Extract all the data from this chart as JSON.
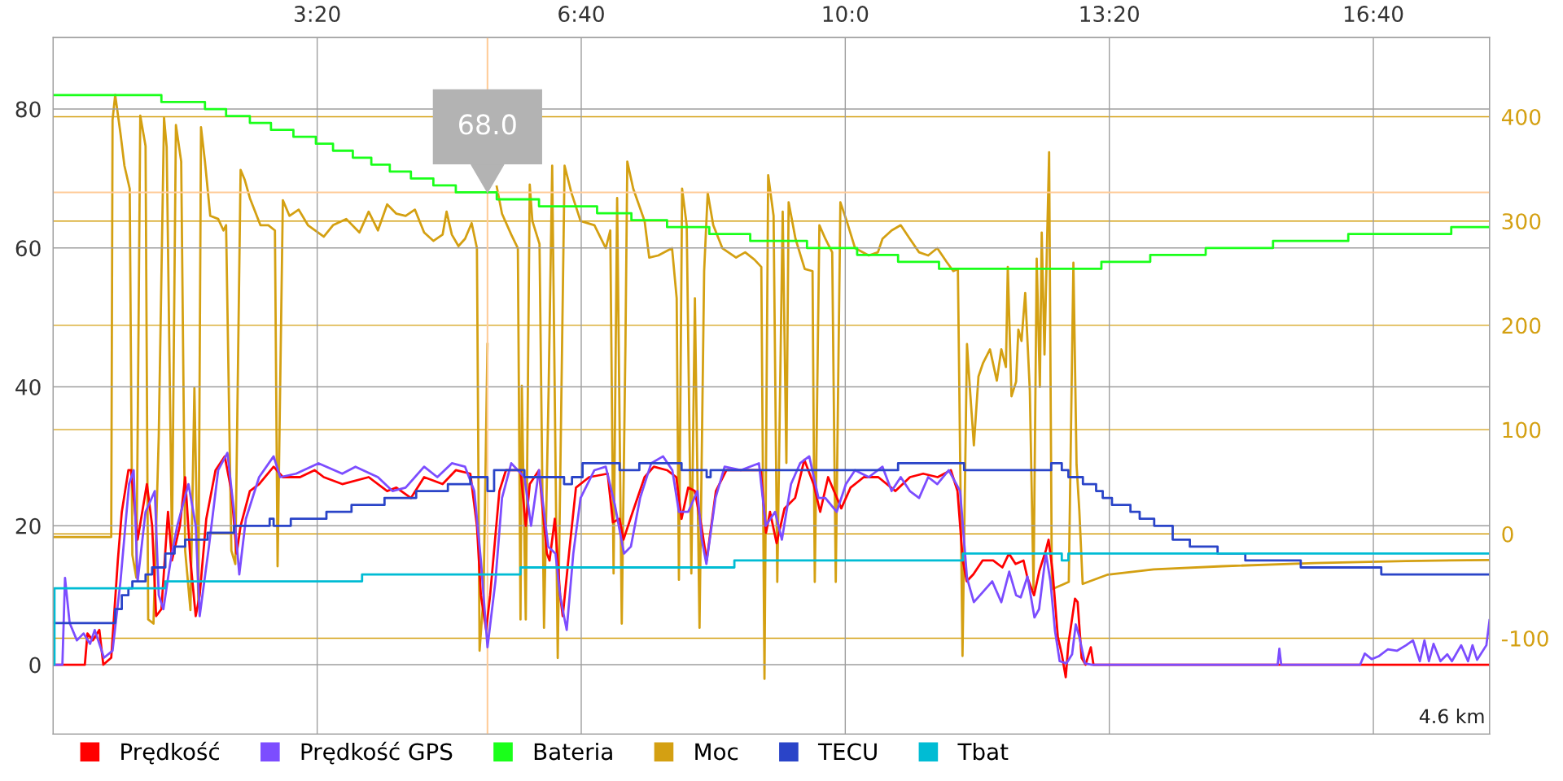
{
  "chart_data": {
    "type": "line",
    "xlim": [
      0,
      1088
    ],
    "xticks": [
      {
        "value": 200,
        "label": "3:20"
      },
      {
        "value": 400,
        "label": "6:40"
      },
      {
        "value": 600,
        "label": "10:0"
      },
      {
        "value": 800,
        "label": "13:20"
      },
      {
        "value": 1000,
        "label": "16:40"
      }
    ],
    "ylim": [
      -10,
      90.3
    ],
    "yticks": [
      0,
      20,
      40,
      60,
      80
    ],
    "y2lim": [
      -192,
      476
    ],
    "y2ticks": [
      -100,
      0,
      100,
      200,
      300,
      400
    ],
    "grid": true,
    "legend": "bottom left",
    "ref_lines": [
      {
        "axis": "x",
        "value": 329,
        "color": "#ffcc99"
      },
      {
        "axis": "y",
        "value": 68,
        "color": "#ffcc99"
      }
    ],
    "annotations": [
      {
        "text": "68.0",
        "x": 329,
        "y": 68
      },
      "4.6 km"
    ],
    "series": [
      {
        "name": "Prędkość",
        "color": "#ff0000",
        "x": [
          0,
          24,
          26,
          30,
          35,
          38,
          44,
          49,
          52,
          57,
          59,
          64,
          71,
          75,
          78,
          82,
          87,
          90,
          96,
          100,
          104,
          108,
          111,
          116,
          123,
          130,
          135,
          139,
          142,
          149,
          156,
          167,
          174,
          187,
          198,
          205,
          219,
          239,
          253,
          260,
          271,
          281,
          295,
          305,
          316,
          321,
          324,
          328,
          331,
          338,
          343,
          354,
          358,
          361,
          368,
          374,
          376,
          380,
          384,
          386,
          391,
          396,
          406,
          420,
          424,
          429,
          432,
          439,
          448,
          455,
          465,
          472,
          476,
          481,
          486,
          491,
          495,
          502,
          510,
          528,
          536,
          540,
          543,
          548,
          554,
          562,
          569,
          576,
          581,
          587,
          597,
          604,
          614,
          625,
          638,
          649,
          659,
          670,
          680,
          685,
          689,
          692,
          697,
          704,
          712,
          719,
          724,
          729,
          735,
          738,
          743,
          747,
          752,
          754,
          757,
          761,
          764,
          767,
          769,
          774,
          776,
          779,
          782,
          786,
          788,
          1088
        ],
        "values": [
          0,
          0,
          4.5,
          3.5,
          5,
          0,
          1,
          15,
          22,
          28,
          28,
          18,
          26,
          20,
          7,
          8,
          22,
          15,
          20,
          27,
          15,
          7,
          10,
          21,
          28,
          30,
          25,
          16,
          20,
          25,
          26,
          28.5,
          27,
          27,
          28,
          27,
          26,
          27,
          25,
          25.5,
          24,
          27,
          26,
          28,
          27.5,
          20,
          10,
          5,
          10,
          25,
          28,
          28,
          20,
          26,
          28,
          16,
          15,
          21,
          10,
          7,
          16.5,
          25.5,
          27,
          27.5,
          20.5,
          21,
          18,
          22,
          27,
          28.5,
          28,
          27,
          21,
          25.5,
          25,
          20,
          15,
          25,
          28,
          28,
          28,
          19,
          22,
          17.5,
          22.5,
          24,
          29.5,
          26,
          22,
          27,
          22.5,
          25.5,
          27,
          27,
          25,
          27,
          27.5,
          27,
          28,
          25,
          15,
          12,
          13,
          15,
          15,
          14,
          16,
          14.5,
          15,
          12.5,
          10,
          13.5,
          16.5,
          18,
          13.5,
          4,
          1.5,
          -1.8,
          3,
          9.5,
          9,
          1,
          0,
          2.5,
          0,
          0
        ]
      },
      {
        "name": "Prędkość GPS",
        "color": "#7c4dff",
        "x": [
          0,
          7,
          9,
          12.5,
          18,
          23,
          28,
          31.5,
          35,
          38.5,
          45,
          51,
          57.5,
          61,
          64,
          70,
          77,
          80,
          83.5,
          89,
          94,
          102.5,
          108,
          111,
          118,
          125,
          132,
          137,
          141,
          146,
          156,
          167,
          172,
          184,
          201,
          219,
          229,
          246,
          257,
          267,
          281,
          291,
          302,
          312,
          319,
          324,
          329,
          335,
          340,
          347,
          357,
          362,
          368,
          375,
          380.5,
          384,
          386.4,
          389,
          394,
          399.5,
          410,
          418.6,
          425.5,
          432.4,
          437.6,
          444.6,
          453,
          462,
          469,
          474,
          481,
          488,
          491.3,
          494.8,
          501.7,
          508.6,
          520.8,
          534.6,
          539.8,
          546.8,
          552,
          558.9,
          565.8,
          572.7,
          579.7,
          584.9,
          593.5,
          600.5,
          607.4,
          617.8,
          628.2,
          635.1,
          642,
          648.9,
          655.9,
          662.8,
          669.7,
          678.4,
          687,
          692.2,
          697.4,
          704.4,
          711.3,
          718.2,
          724.2,
          729.4,
          732.9,
          738,
          743.3,
          746.8,
          752,
          755.4,
          758.9,
          762.4,
          767.6,
          771.8,
          774.6,
          777.3,
          781.5,
          786.7,
          927.5,
          928.8,
          930.2,
          990,
          993.5,
          998.7,
          1003.9,
          1010.9,
          1017.8,
          1024.8,
          1030,
          1035.2,
          1038.7,
          1042.1,
          1045.6,
          1050.8,
          1056,
          1059.5,
          1066.5,
          1071.7,
          1075.1,
          1078.6,
          1085.6,
          1088
        ],
        "values": [
          0,
          0,
          12.5,
          6,
          3.5,
          4.5,
          3,
          5,
          3,
          1,
          2,
          12,
          26,
          28,
          12,
          22,
          25,
          10,
          8,
          15,
          20,
          26,
          20,
          7,
          17,
          28,
          30.5,
          22,
          13,
          21,
          27,
          30,
          27,
          27.5,
          29,
          27.5,
          28.5,
          27,
          25,
          25.5,
          28.5,
          27,
          29,
          28.5,
          25,
          15,
          2.5,
          12,
          24,
          29,
          27,
          20,
          28,
          17,
          16,
          10,
          7.5,
          5,
          16,
          24,
          28,
          28.5,
          23,
          16,
          17,
          24,
          29,
          30,
          28,
          22,
          22,
          25,
          18,
          14.5,
          24,
          28.5,
          28,
          29,
          20,
          22,
          18,
          26,
          29,
          30,
          24,
          24,
          22,
          26,
          28,
          27,
          28.5,
          25,
          27,
          25,
          24,
          27,
          26,
          28,
          25,
          12.5,
          9,
          10.5,
          12,
          9,
          13.4,
          10,
          9.7,
          12.7,
          6.8,
          8,
          16,
          12,
          4.8,
          0.5,
          0.2,
          1.5,
          5.8,
          4,
          0.2,
          0,
          0,
          2.3,
          0,
          0,
          1.6,
          0.8,
          1.2,
          2.2,
          2,
          2.8,
          3.5,
          0.5,
          3.5,
          0.5,
          3,
          0.5,
          1.5,
          0.5,
          2.8,
          0.5,
          2.8,
          0.7,
          2.8,
          6.4
        ]
      },
      {
        "name": "Bateria",
        "color": "#1aff1a",
        "type": "step",
        "x": [
          0,
          82,
          115,
          131,
          149,
          165,
          182,
          199,
          212,
          227,
          241,
          255,
          271,
          288,
          305,
          336,
          368,
          412,
          438,
          465,
          497,
          528,
          571,
          609,
          640,
          671,
          794,
          831,
          873,
          924,
          981,
          1059,
          1088
        ],
        "values": [
          82,
          81,
          80,
          79,
          78,
          77,
          76,
          75,
          74,
          73,
          72,
          71,
          70,
          69,
          68,
          67,
          66,
          65,
          64,
          63,
          62,
          61,
          60,
          59,
          58,
          57,
          58,
          59,
          60,
          61,
          62,
          63,
          63
        ]
      },
      {
        "name": "Moc",
        "color": "#d4a012",
        "axis": "y2",
        "x": [
          0,
          44,
          45,
          47,
          51,
          54,
          58,
          60,
          63,
          64,
          66,
          70,
          72,
          76,
          80,
          84,
          86,
          90,
          93,
          97,
          100,
          104,
          107,
          110,
          112,
          115,
          119,
          125,
          129,
          131,
          135,
          138,
          142,
          145,
          149,
          157,
          163,
          168,
          170,
          174,
          179,
          186,
          193,
          205,
          212,
          222,
          232,
          239,
          246,
          253,
          260,
          267,
          274,
          281,
          288,
          295,
          298,
          302,
          307,
          312,
          317,
          321,
          323,
          326,
          329,
          332,
          336,
          340,
          347,
          352,
          354,
          355,
          358,
          361,
          363,
          368.4,
          371.8,
          375.3,
          378,
          382.2,
          387.4,
          392.6,
          399.5,
          410,
          418.6,
          422,
          424.5,
          427.2,
          430.7,
          433.5,
          434.9,
          439.4,
          448,
          451.5,
          458.4,
          468.8,
          472.3,
          474,
          476.4,
          479.9,
          483.4,
          486.1,
          489.6,
          493.1,
          495.8,
          500,
          506.9,
          517.3,
          524.2,
          531.2,
          536.4,
          538.8,
          541.6,
          545.7,
          548.5,
          552.6,
          555.4,
          557.1,
          562.3,
          569.3,
          575.2,
          576.9,
          580.4,
          584.9,
          590.1,
          592.8,
          596.3,
          601.1,
          607.4,
          617.8,
          624.7,
          628.2,
          635.1,
          642,
          648.9,
          655.9,
          662.8,
          669.7,
          676.7,
          681.8,
          685.3,
          688.8,
          692.2,
          694,
          697.4,
          700.9,
          704.4,
          709.6,
          714.8,
          718.2,
          721.7,
          723.1,
          725.9,
          729.4,
          731.1,
          733.5,
          736.3,
          739.8,
          742.6,
          745,
          747.4,
          748.8,
          750.9,
          754.4,
          756.5,
          764.1,
          769.3,
          772.8,
          775.2,
          777.3,
          779.8,
          798.9,
          833.6,
          885.8,
          955.3,
          1024.8,
          1088
        ],
        "values": [
          -3,
          -3,
          397,
          421,
          384,
          353,
          331,
          -20,
          -42,
          94,
          401,
          372,
          -82,
          -86,
          94,
          399,
          371,
          -11,
          392,
          357,
          -16,
          -73,
          140,
          -68,
          390,
          357,
          305,
          302,
          291,
          296,
          -16,
          -29,
          349,
          340,
          322,
          296,
          296,
          291,
          -31,
          320,
          305,
          311,
          296,
          285,
          296,
          302,
          289,
          309,
          291,
          316,
          307,
          305,
          311,
          289,
          281,
          287,
          309,
          287,
          276,
          283,
          298,
          274,
          -112,
          -60,
          182,
          null,
          333,
          307,
          287,
          274,
          -82,
          142,
          -82,
          335,
          300,
          278,
          -90,
          138,
          353,
          -119,
          353,
          327,
          300,
          296,
          274,
          291,
          -38,
          322,
          -86,
          182,
          357,
          331,
          300,
          265,
          267,
          274,
          226,
          -44,
          331,
          296,
          -38,
          226,
          -90,
          252,
          327,
          296,
          274,
          265,
          270,
          263,
          256,
          -139,
          344,
          305,
          -46,
          309,
          68,
          318,
          283,
          254,
          252,
          -46,
          296,
          283,
          270,
          -46,
          318,
          300,
          274,
          267,
          270,
          283,
          291,
          296,
          283,
          270,
          267,
          274,
          261,
          252,
          254,
          -117,
          182,
          147,
          85,
          151,
          164,
          177,
          147,
          177,
          160,
          256,
          132,
          146,
          196,
          185,
          231,
          137,
          -53,
          264,
          141,
          289,
          172,
          366,
          -53,
          -49,
          -46,
          260,
          66,
          22,
          -48,
          -39,
          -34,
          -31,
          -28,
          -26,
          -25
        ]
      },
      {
        "name": "TECU",
        "color": "#2a44c8",
        "type": "step",
        "x": [
          0,
          47,
          52,
          57,
          60,
          70,
          75,
          85,
          92,
          100,
          117,
          137,
          164,
          167,
          180,
          207,
          226,
          251,
          275,
          299,
          316,
          329,
          334,
          357,
          387,
          393,
          401,
          429,
          444,
          476,
          495,
          498,
          640,
          690,
          756,
          764,
          769,
          780,
          790,
          795,
          802,
          816,
          823,
          834,
          848,
          861,
          882,
          903,
          945,
          1006,
          1088
        ],
        "values": [
          6,
          8,
          10,
          11,
          12,
          13,
          14,
          16,
          17,
          18,
          19,
          20,
          21,
          20,
          21,
          22,
          23,
          24,
          25,
          26,
          27,
          25,
          28,
          27,
          26,
          27,
          29,
          28,
          29,
          28,
          27,
          28,
          29,
          28,
          29,
          28,
          27,
          26,
          25,
          24,
          23,
          22,
          21,
          20,
          18,
          17,
          16,
          15,
          14,
          13,
          13
        ]
      },
      {
        "name": "Tbat",
        "color": "#00bcd4",
        "type": "step",
        "x": [
          0,
          1,
          85,
          234,
          354,
          516,
          689,
          764,
          769,
          1088
        ],
        "values": [
          0,
          11,
          12,
          13,
          14,
          15,
          16,
          15,
          16,
          16
        ]
      }
    ]
  }
}
